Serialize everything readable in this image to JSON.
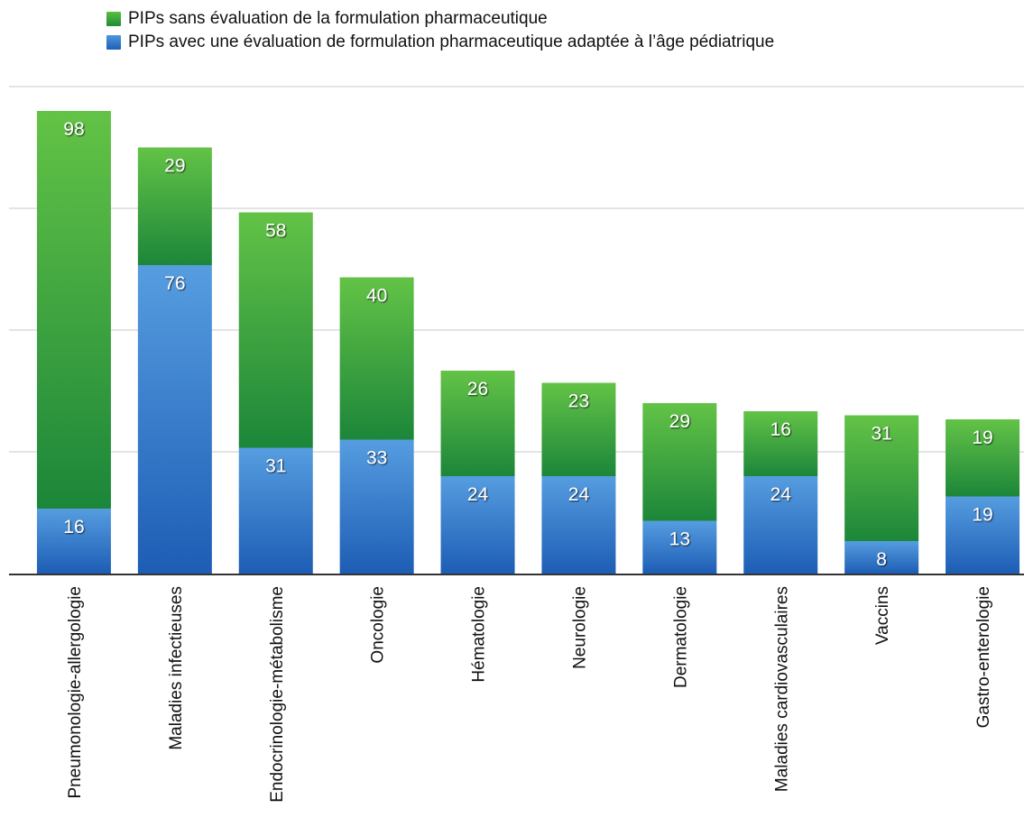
{
  "chart_data": {
    "type": "bar",
    "stacked": true,
    "categories": [
      "Pneumonologie-allergologie",
      "Maladies infectieuses",
      "Endocrinologie-métabolisme",
      "Oncologie",
      "Hématologie",
      "Neurologie",
      "Dermatologie",
      "Maladies cardiovasculaires",
      "Vaccins",
      "Gastro-enterologie"
    ],
    "series": [
      {
        "name": "PIPs avec une évaluation de formulation pharmaceutique adaptée à l’âge pédiatrique",
        "color": "#2f7bd0",
        "values": [
          16,
          76,
          31,
          33,
          24,
          24,
          13,
          24,
          8,
          19
        ]
      },
      {
        "name": "PIPs sans évaluation de la formulation pharmaceutique",
        "color": "#3aa63d",
        "values": [
          98,
          29,
          58,
          40,
          26,
          23,
          29,
          16,
          31,
          19
        ]
      }
    ],
    "ylim": [
      0,
      120
    ],
    "grid": true,
    "legend": "top-left"
  }
}
